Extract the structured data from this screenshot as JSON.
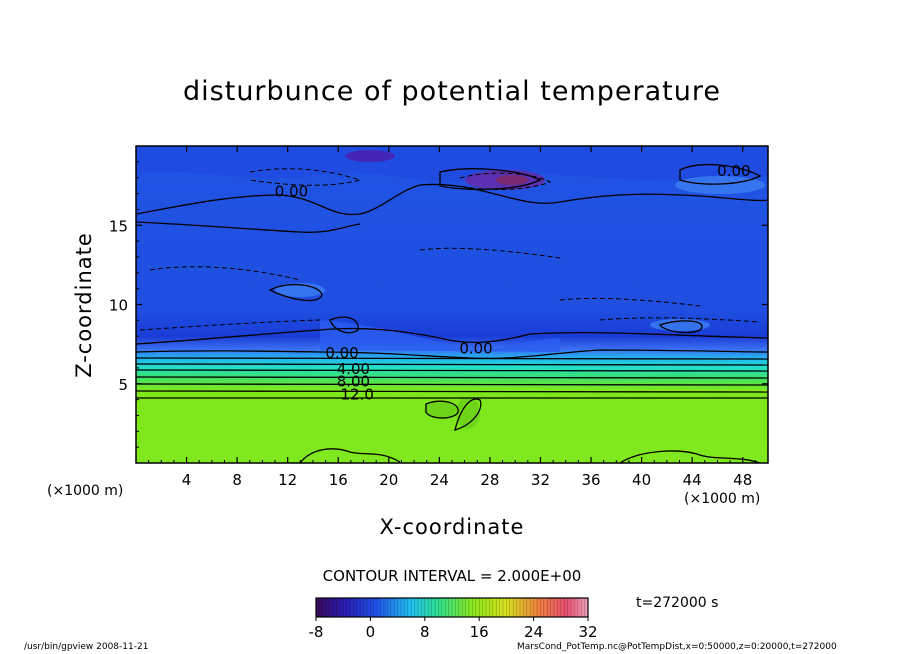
{
  "chart_data": {
    "type": "heatmap",
    "title": "disturbunce of potential temperature",
    "xlabel": "X-coordinate",
    "ylabel": "Z-coordinate",
    "x_unit": "(×1000 m)",
    "y_unit": "(×1000 m)",
    "xlim": [
      0,
      50
    ],
    "ylim": [
      0,
      20
    ],
    "x_ticks": [
      4,
      8,
      12,
      16,
      20,
      24,
      28,
      32,
      36,
      40,
      44,
      48
    ],
    "y_ticks": [
      5,
      10,
      15
    ],
    "contour_interval_text": "CONTOUR INTERVAL = 2.000E+00",
    "contour_labels": [
      {
        "text": "0.00",
        "x": 12.3,
        "y": 17.2
      },
      {
        "text": "0.00",
        "x": 47.3,
        "y": 18.5
      },
      {
        "text": "0.00",
        "x": 26.9,
        "y": 7.3
      },
      {
        "text": "0.00",
        "x": 16.3,
        "y": 7.0
      },
      {
        "text": "4.00",
        "x": 17.2,
        "y": 6.0
      },
      {
        "text": "8.00",
        "x": 17.2,
        "y": 5.2
      },
      {
        "text": "12.0",
        "x": 17.5,
        "y": 4.4
      }
    ],
    "colorbar": {
      "ticks": [
        -8,
        0,
        8,
        16,
        24,
        32
      ],
      "range": [
        -8,
        32
      ]
    },
    "colors": {
      "upper_blue": "#1c4be0",
      "mid_blue": "#163ad8",
      "light_blue": "#2f6af0",
      "cyan": "#19c0ee",
      "lower_green": "#7ee81c",
      "dark_spot": "#3d1a8c"
    },
    "time_label": "t=272000  s"
  },
  "footer": {
    "left": "/usr/bin/gpview   2008-11-21",
    "right": "MarsCond_PotTemp.nc@PotTempDist,x=0:50000,z=0:20000,t=272000"
  }
}
